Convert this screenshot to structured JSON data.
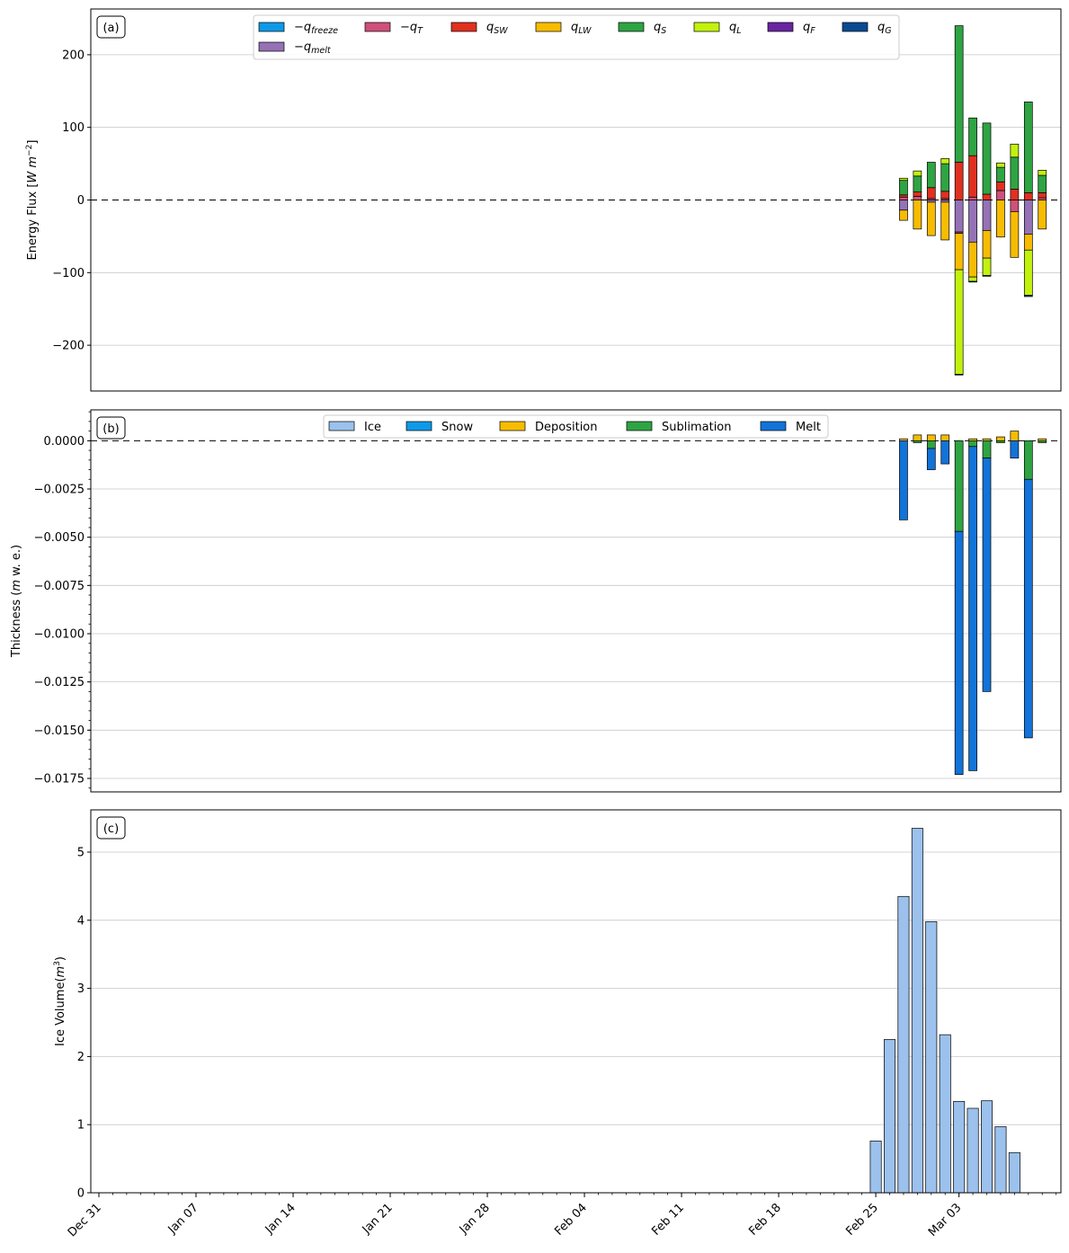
{
  "figure": {
    "x_dates": [
      "Dec 31",
      "Jan 07",
      "Jan 14",
      "Jan 21",
      "Jan 28",
      "Feb 04",
      "Feb 11",
      "Feb 18",
      "Feb 25",
      "Mar 03"
    ]
  },
  "chart_data": [
    {
      "type": "bar",
      "panel_label": "(a)",
      "ylabel_base": "Energy Flux [",
      "ylabel_unit_main": "W m",
      "ylabel_unit_sup": "−2",
      "ylabel_close": "]",
      "ylim": [
        -263,
        263
      ],
      "yticks": [
        -200,
        -100,
        0,
        100,
        200
      ],
      "ytick_labels": [
        "−200",
        "−100",
        "0",
        "100",
        "200"
      ],
      "grid": true,
      "legend_position": "top-center",
      "x": [
        "Feb 27",
        "Feb 28",
        "Mar 01",
        "Mar 02",
        "Mar 03",
        "Mar 04",
        "Mar 05",
        "Mar 06",
        "Mar 07",
        "Mar 08",
        "Mar 09"
      ],
      "series": [
        {
          "name": "−q",
          "sub": "freeze",
          "color": "#0e99e8",
          "values": [
            0,
            0,
            0,
            0,
            0,
            0,
            0,
            0,
            0,
            0,
            0
          ]
        },
        {
          "name": "−q",
          "sub": "melt",
          "color": "#9572b5",
          "values": [
            -14,
            0,
            -3,
            -3,
            -44,
            -58,
            -42,
            0,
            0,
            -47,
            0
          ]
        },
        {
          "name": "−q",
          "sub": "T",
          "color": "#cf507a",
          "values": [
            4,
            5,
            2,
            2,
            -2,
            4,
            0,
            13,
            -16,
            0,
            3
          ]
        },
        {
          "name": "q",
          "sub": "SW",
          "color": "#e03020",
          "values": [
            3,
            6,
            15,
            10,
            52,
            57,
            8,
            12,
            15,
            10,
            7
          ]
        },
        {
          "name": "q",
          "sub": "LW",
          "color": "#f7bc00",
          "values": [
            -14,
            -40,
            -46,
            -52,
            -50,
            -48,
            -38,
            -51,
            -63,
            -22,
            -40
          ]
        },
        {
          "name": "q",
          "sub": "S",
          "color": "#2ea443",
          "values": [
            20,
            22,
            35,
            38,
            188,
            52,
            98,
            20,
            44,
            125,
            24
          ]
        },
        {
          "name": "q",
          "sub": "L",
          "color": "#c2f20c",
          "values": [
            3,
            7,
            0,
            7,
            -144,
            -6,
            -24,
            6,
            18,
            -62,
            7
          ]
        },
        {
          "name": "q",
          "sub": "F",
          "color": "#6a25a2",
          "values": [
            0,
            0,
            0,
            0,
            0,
            0,
            0,
            0,
            0,
            0,
            0
          ]
        },
        {
          "name": "q",
          "sub": "G",
          "color": "#0b4a91",
          "values": [
            0,
            0,
            0,
            0,
            -1,
            -1,
            -1,
            0,
            0,
            -2,
            0
          ]
        }
      ]
    },
    {
      "type": "bar",
      "panel_label": "(b)",
      "ylabel_base": "Thickness (",
      "ylabel_unit_main": "m",
      "ylabel_close": " w. e.)",
      "ylim": [
        -0.0182,
        0.0016
      ],
      "yticks": [
        0,
        -0.0025,
        -0.005,
        -0.0075,
        -0.01,
        -0.0125,
        -0.015,
        -0.0175
      ],
      "ytick_labels": [
        "0.0000",
        "−0.0025",
        "−0.0050",
        "−0.0075",
        "−0.0100",
        "−0.0125",
        "−0.0150",
        "−0.0175"
      ],
      "grid": true,
      "legend_position": "top-center",
      "x": [
        "Feb 27",
        "Feb 28",
        "Mar 01",
        "Mar 02",
        "Mar 03",
        "Mar 04",
        "Mar 05",
        "Mar 06",
        "Mar 07",
        "Mar 08",
        "Mar 09"
      ],
      "series": [
        {
          "name": "Ice",
          "color": "#9bc1ec",
          "values": [
            0,
            0,
            0,
            0,
            0,
            0,
            0,
            0,
            0,
            0,
            0
          ]
        },
        {
          "name": "Snow",
          "color": "#0e99e8",
          "values": [
            0,
            0,
            0,
            0,
            0,
            0,
            0,
            0,
            0,
            0,
            0
          ]
        },
        {
          "name": "Deposition",
          "color": "#f7bc00",
          "values": [
            0.0001,
            0.0003,
            0.0003,
            0.0003,
            0,
            0.0001,
            0.0001,
            0.0002,
            0.0005,
            0,
            0.0001
          ]
        },
        {
          "name": "Sublimation",
          "color": "#2ea443",
          "values": [
            0,
            -0.0001,
            -0.0004,
            0,
            -0.0047,
            -0.0003,
            -0.0009,
            -0.0001,
            0,
            -0.002,
            -0.0001
          ]
        },
        {
          "name": "Melt",
          "color": "#1273d8",
          "values": [
            -0.0041,
            0,
            -0.0011,
            -0.0012,
            -0.0126,
            -0.0168,
            -0.0121,
            0,
            -0.0009,
            -0.0134,
            0
          ]
        }
      ]
    },
    {
      "type": "bar",
      "panel_label": "(c)",
      "ylabel_base": "Ice Volume(",
      "ylabel_unit_main": "m",
      "ylabel_unit_sup": "3",
      "ylabel_close": ")",
      "ylim": [
        0,
        5.62
      ],
      "yticks": [
        0,
        1,
        2,
        3,
        4,
        5
      ],
      "ytick_labels": [
        "0",
        "1",
        "2",
        "3",
        "4",
        "5"
      ],
      "grid": true,
      "x": [
        "Feb 25",
        "Feb 26",
        "Feb 27",
        "Feb 28",
        "Mar 01",
        "Mar 02",
        "Mar 03",
        "Mar 04",
        "Mar 05",
        "Mar 06",
        "Mar 07"
      ],
      "series": [
        {
          "name": "Ice",
          "color": "#9bc1ec",
          "values": [
            0.76,
            2.25,
            4.35,
            5.35,
            3.98,
            2.32,
            1.34,
            1.24,
            1.35,
            0.97,
            0.59
          ]
        }
      ]
    }
  ]
}
